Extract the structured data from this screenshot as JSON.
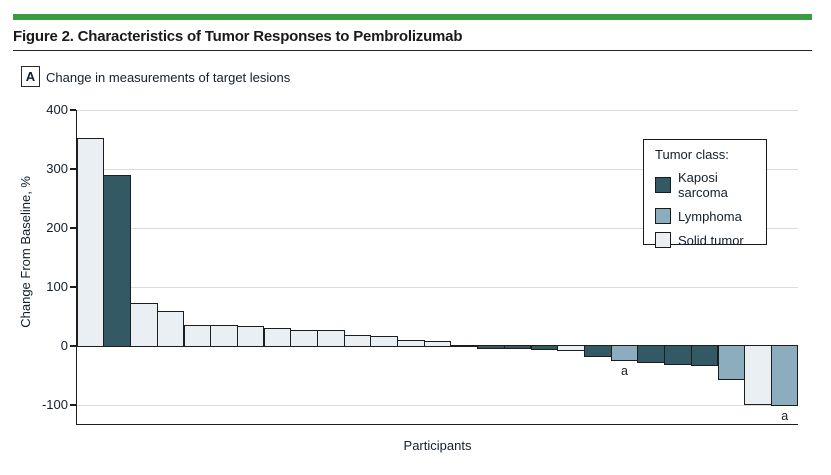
{
  "figure": {
    "title": "Figure 2. Characteristics of Tumor Responses to Pembrolizumab",
    "panel_label": "A",
    "panel_title": "Change in measurements of target lesions"
  },
  "colors": {
    "accent_green": "#3a9b41",
    "kaposi_sarcoma": "#335a64",
    "lymphoma": "#8badbd",
    "solid_tumor": "#e9eff2",
    "axis": "#1d1d1d",
    "gridline": "#dcdcdc",
    "text_navy": "#121f2b"
  },
  "chart_data": {
    "type": "bar",
    "subtype": "waterfall",
    "title": "Change in measurements of target lesions",
    "xlabel": "Participants",
    "ylabel": "Change From Baseline, %",
    "ylim": [
      -131,
      400
    ],
    "grid": "horizontal gridlines at labeled ticks except 0; 0 drawn as solid black axis line",
    "yticks": [
      {
        "label": "400",
        "value": 400
      },
      {
        "label": "300",
        "value": 300
      },
      {
        "label": "200",
        "value": 200
      },
      {
        "label": "100",
        "value": 100
      },
      {
        "label": "0",
        "value": 0
      },
      {
        "label": "-100",
        "value": -100
      }
    ],
    "legend": {
      "title": "Tumor class:",
      "position": "upper right",
      "entries": [
        {
          "label": "Kaposi sarcoma",
          "class": "kaposi_sarcoma"
        },
        {
          "label": "Lymphoma",
          "class": "lymphoma"
        },
        {
          "label": "Solid tumor",
          "class": "solid_tumor"
        }
      ]
    },
    "bars": [
      {
        "value": 350,
        "class": "solid_tumor"
      },
      {
        "value": 288,
        "class": "kaposi_sarcoma"
      },
      {
        "value": 70,
        "class": "solid_tumor"
      },
      {
        "value": 57,
        "class": "solid_tumor"
      },
      {
        "value": 34,
        "class": "solid_tumor"
      },
      {
        "value": 33,
        "class": "solid_tumor"
      },
      {
        "value": 32,
        "class": "solid_tumor"
      },
      {
        "value": 28,
        "class": "solid_tumor"
      },
      {
        "value": 25,
        "class": "solid_tumor"
      },
      {
        "value": 24,
        "class": "solid_tumor"
      },
      {
        "value": 16,
        "class": "solid_tumor"
      },
      {
        "value": 15,
        "class": "solid_tumor"
      },
      {
        "value": 8,
        "class": "solid_tumor"
      },
      {
        "value": 6,
        "class": "solid_tumor"
      },
      {
        "value": 0,
        "class": "solid_tumor"
      },
      {
        "value": -2,
        "class": "kaposi_sarcoma"
      },
      {
        "value": -2,
        "class": "kaposi_sarcoma"
      },
      {
        "value": -5,
        "class": "kaposi_sarcoma"
      },
      {
        "value": -6,
        "class": "solid_tumor"
      },
      {
        "value": -17,
        "class": "kaposi_sarcoma"
      },
      {
        "value": -23,
        "class": "lymphoma"
      },
      {
        "value": -26,
        "class": "kaposi_sarcoma"
      },
      {
        "value": -30,
        "class": "kaposi_sarcoma"
      },
      {
        "value": -32,
        "class": "kaposi_sarcoma"
      },
      {
        "value": -56,
        "class": "lymphoma"
      },
      {
        "value": -98,
        "class": "solid_tumor"
      },
      {
        "value": -100,
        "class": "lymphoma"
      }
    ],
    "annotations": [
      {
        "bar_index": 20,
        "label": "a"
      },
      {
        "bar_index": 26,
        "label": "a"
      }
    ]
  }
}
